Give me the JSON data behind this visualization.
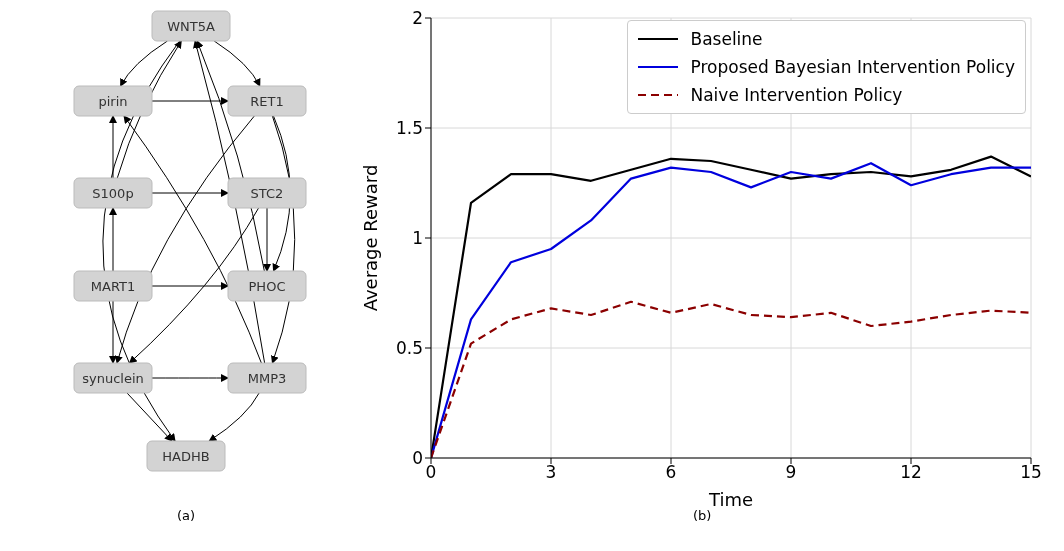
{
  "chart_data": [
    {
      "type": "other",
      "annotations": [
        "WNT5A",
        "pirin",
        "RET1",
        "S100p",
        "STC2",
        "MART1",
        "PHOC",
        "synuclein",
        "MMP3",
        "HADHB",
        "(a)"
      ]
    },
    {
      "type": "line",
      "xlabel": "Time",
      "ylabel": "Average Reward",
      "x": [
        0,
        1,
        2,
        3,
        4,
        5,
        6,
        7,
        8,
        9,
        10,
        11,
        12,
        13,
        14,
        15
      ],
      "xlim": [
        0,
        15
      ],
      "xticks": [
        0,
        3,
        6,
        9,
        12,
        15
      ],
      "ylim": [
        0,
        2
      ],
      "yticks": [
        0,
        0.5,
        1,
        1.5,
        2
      ],
      "grid": true,
      "legend": "top right",
      "annotations": [
        "(b)"
      ],
      "series": [
        {
          "name": "Baseline",
          "color": "#000000",
          "values": [
            0,
            1.16,
            1.29,
            1.29,
            1.26,
            1.31,
            1.36,
            1.35,
            1.31,
            1.27,
            1.29,
            1.3,
            1.28,
            1.31,
            1.37,
            1.28
          ]
        },
        {
          "name": "Proposed Bayesian Intervention Policy",
          "color": "#0000dd",
          "values": [
            0,
            0.63,
            0.89,
            0.95,
            1.08,
            1.27,
            1.32,
            1.3,
            1.23,
            1.3,
            1.27,
            1.34,
            1.24,
            1.29,
            1.32,
            1.32
          ]
        },
        {
          "name": "Naive Intervention Policy",
          "color": "#8b0000",
          "line_style": "dashed",
          "values": [
            0,
            0.52,
            0.63,
            0.68,
            0.65,
            0.71,
            0.66,
            0.7,
            0.65,
            0.64,
            0.66,
            0.6,
            0.62,
            0.65,
            0.67,
            0.66
          ]
        }
      ]
    }
  ]
}
